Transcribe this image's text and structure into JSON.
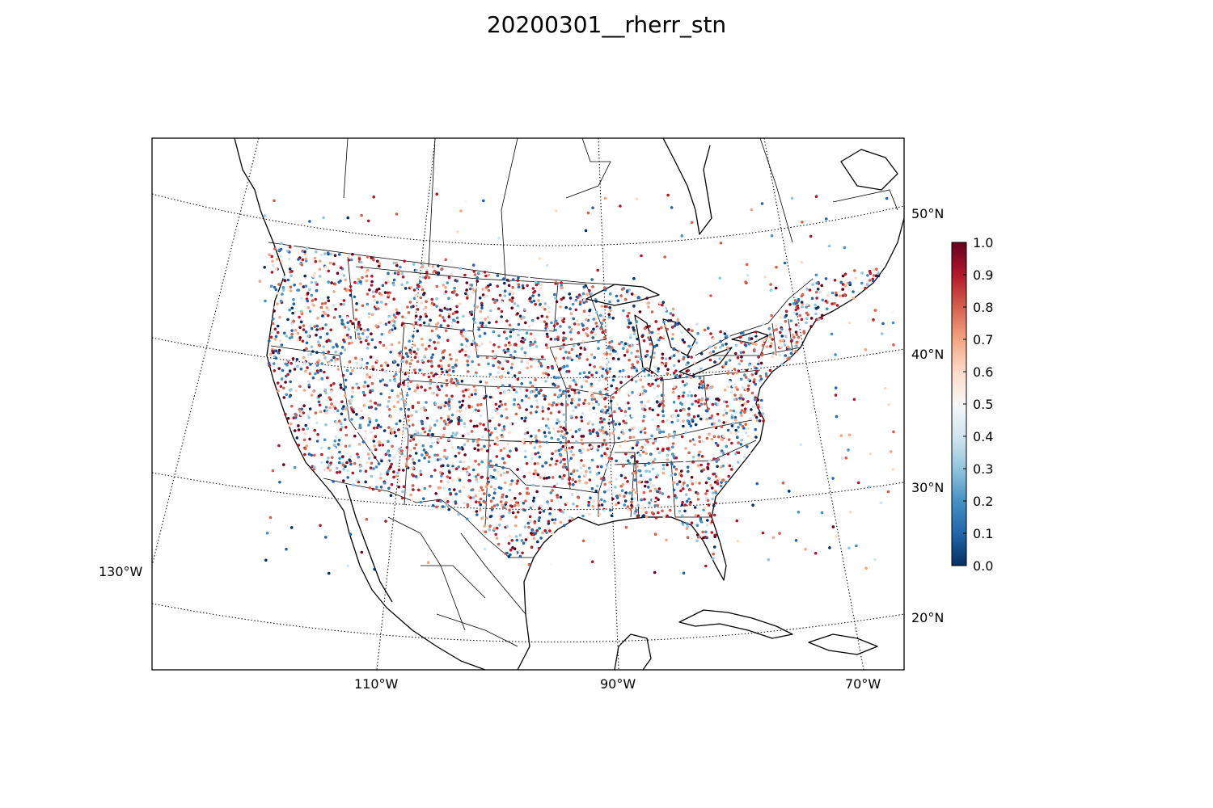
{
  "title": "20200301__rherr_stn",
  "map": {
    "lat_labels": [
      "50°N",
      "40°N",
      "30°N",
      "20°N"
    ],
    "lon_labels": [
      "130°W",
      "110°W",
      "90°W",
      "70°W"
    ],
    "station_seed": 20200301,
    "station_count": 3800
  },
  "colorbar": {
    "min": 0.0,
    "max": 1.0,
    "tick_labels": [
      "0.0",
      "0.1",
      "0.2",
      "0.3",
      "0.4",
      "0.5",
      "0.6",
      "0.7",
      "0.8",
      "0.9",
      "1.0"
    ],
    "colors": [
      "#053061",
      "#2166ac",
      "#4393c3",
      "#92c5de",
      "#d1e5f0",
      "#f7f7f7",
      "#fddbc7",
      "#f4a582",
      "#d6604d",
      "#b2182b",
      "#67001f"
    ]
  },
  "colors": {
    "land_line": "#000000",
    "grid": "#000000",
    "background": "#ffffff"
  }
}
